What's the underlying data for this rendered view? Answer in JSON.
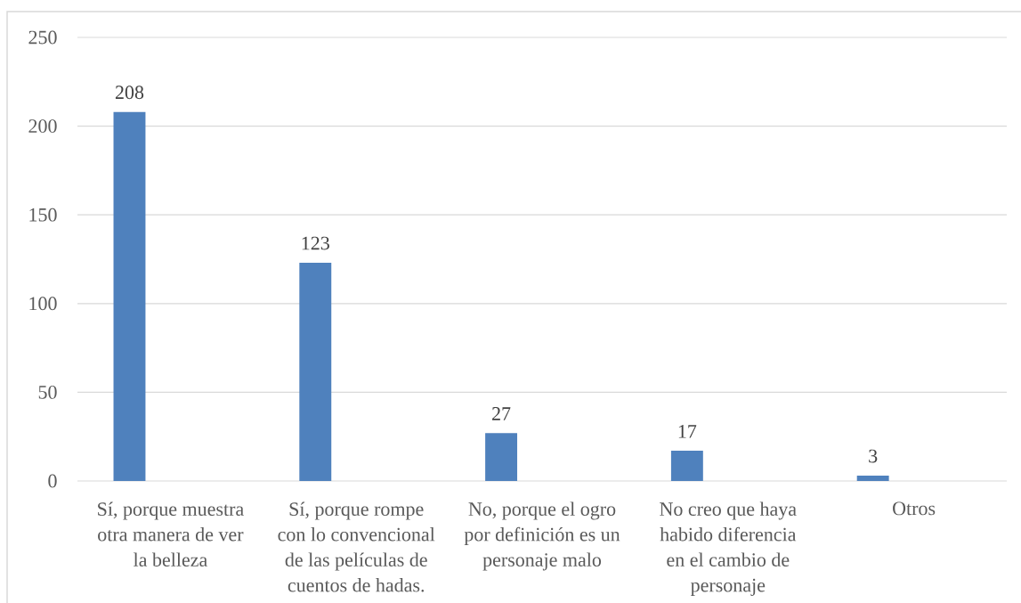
{
  "chart_data": {
    "type": "bar",
    "categories": [
      "Sí, porque muestra otra manera de ver la belleza",
      "Sí, porque rompe con lo convencional de las películas de cuentos de hadas.",
      "No, porque el ogro por definición es un personaje malo",
      "No creo que haya habido diferencia en el cambio de personaje",
      "Otros"
    ],
    "values": [
      208,
      123,
      27,
      17,
      3
    ],
    "color": "#4f81bd",
    "ylim": [
      0,
      250
    ],
    "yticks": [
      0,
      50,
      100,
      150,
      200,
      250
    ],
    "grid": "y",
    "data_labels": true
  }
}
